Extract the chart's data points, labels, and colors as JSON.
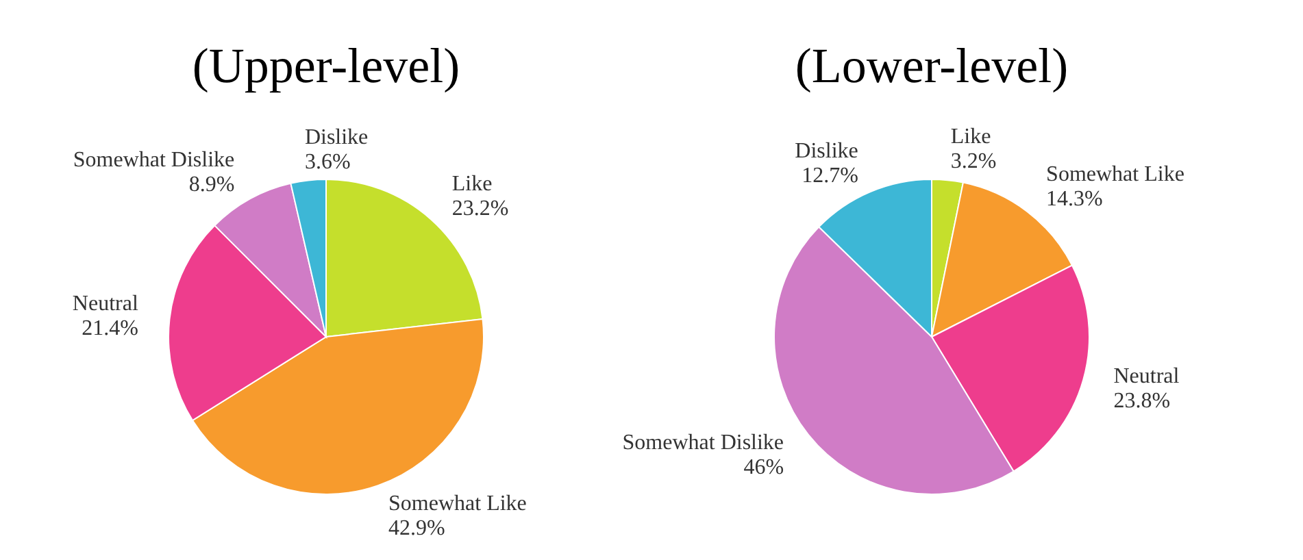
{
  "chart_data": [
    {
      "type": "pie",
      "title": "(Upper-level)",
      "categories": [
        "Like",
        "Somewhat Like",
        "Neutral",
        "Somewhat Dislike",
        "Dislike"
      ],
      "values": [
        23.2,
        42.9,
        21.4,
        8.9,
        3.6
      ],
      "colors": [
        "#c5df2c",
        "#f79b2d",
        "#ee3d8d",
        "#d07cc6",
        "#3db7d6"
      ],
      "value_labels": [
        "23.2%",
        "42.9%",
        "21.4%",
        "8.9%",
        "3.6%"
      ]
    },
    {
      "type": "pie",
      "title": "(Lower-level)",
      "categories": [
        "Like",
        "Somewhat Like",
        "Neutral",
        "Somewhat Dislike",
        "Dislike"
      ],
      "values": [
        3.2,
        14.3,
        23.8,
        46,
        12.7
      ],
      "colors": [
        "#c5df2c",
        "#f79b2d",
        "#ee3d8d",
        "#d07cc6",
        "#3db7d6"
      ],
      "value_labels": [
        "3.2%",
        "14.3%",
        "23.8%",
        "46%",
        "12.7%"
      ]
    }
  ]
}
